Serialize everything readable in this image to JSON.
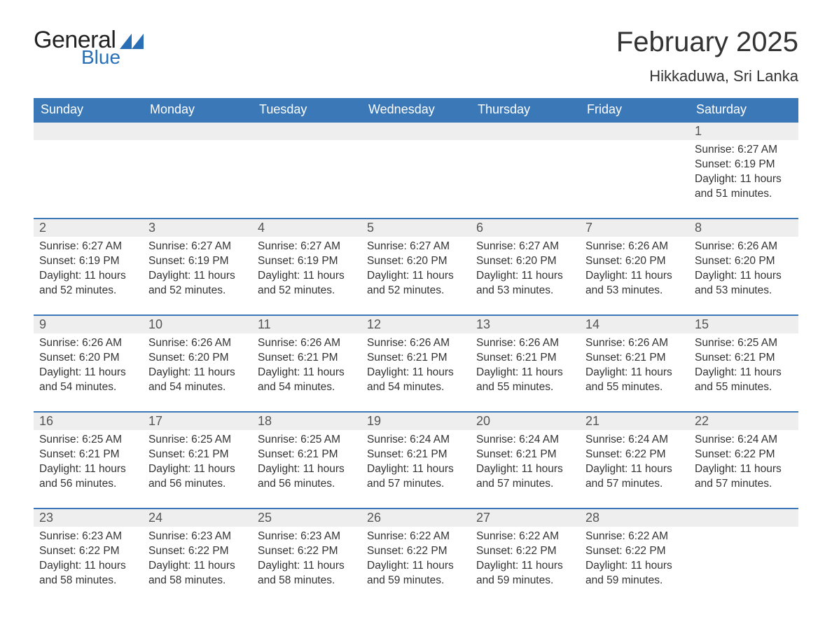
{
  "brand": {
    "word1": "General",
    "word2": "Blue",
    "accent_color": "#2a6fb5"
  },
  "title": "February 2025",
  "location": "Hikkaduwa, Sri Lanka",
  "colors": {
    "header_bg": "#3a78b8",
    "header_text": "#ffffff",
    "daynum_bg": "#eeeeee",
    "row_border": "#3a78b8",
    "text": "#333333",
    "page_bg": "#ffffff"
  },
  "fonts": {
    "family": "Segoe UI, Arial, sans-serif",
    "title_size_pt": 30,
    "location_size_pt": 17,
    "weekday_size_pt": 14,
    "daynum_size_pt": 14,
    "body_size_pt": 12
  },
  "weekdays": [
    "Sunday",
    "Monday",
    "Tuesday",
    "Wednesday",
    "Thursday",
    "Friday",
    "Saturday"
  ],
  "weeks": [
    [
      null,
      null,
      null,
      null,
      null,
      null,
      {
        "n": "1",
        "sunrise": "Sunrise: 6:27 AM",
        "sunset": "Sunset: 6:19 PM",
        "daylight": "Daylight: 11 hours and 51 minutes."
      }
    ],
    [
      {
        "n": "2",
        "sunrise": "Sunrise: 6:27 AM",
        "sunset": "Sunset: 6:19 PM",
        "daylight": "Daylight: 11 hours and 52 minutes."
      },
      {
        "n": "3",
        "sunrise": "Sunrise: 6:27 AM",
        "sunset": "Sunset: 6:19 PM",
        "daylight": "Daylight: 11 hours and 52 minutes."
      },
      {
        "n": "4",
        "sunrise": "Sunrise: 6:27 AM",
        "sunset": "Sunset: 6:19 PM",
        "daylight": "Daylight: 11 hours and 52 minutes."
      },
      {
        "n": "5",
        "sunrise": "Sunrise: 6:27 AM",
        "sunset": "Sunset: 6:20 PM",
        "daylight": "Daylight: 11 hours and 52 minutes."
      },
      {
        "n": "6",
        "sunrise": "Sunrise: 6:27 AM",
        "sunset": "Sunset: 6:20 PM",
        "daylight": "Daylight: 11 hours and 53 minutes."
      },
      {
        "n": "7",
        "sunrise": "Sunrise: 6:26 AM",
        "sunset": "Sunset: 6:20 PM",
        "daylight": "Daylight: 11 hours and 53 minutes."
      },
      {
        "n": "8",
        "sunrise": "Sunrise: 6:26 AM",
        "sunset": "Sunset: 6:20 PM",
        "daylight": "Daylight: 11 hours and 53 minutes."
      }
    ],
    [
      {
        "n": "9",
        "sunrise": "Sunrise: 6:26 AM",
        "sunset": "Sunset: 6:20 PM",
        "daylight": "Daylight: 11 hours and 54 minutes."
      },
      {
        "n": "10",
        "sunrise": "Sunrise: 6:26 AM",
        "sunset": "Sunset: 6:20 PM",
        "daylight": "Daylight: 11 hours and 54 minutes."
      },
      {
        "n": "11",
        "sunrise": "Sunrise: 6:26 AM",
        "sunset": "Sunset: 6:21 PM",
        "daylight": "Daylight: 11 hours and 54 minutes."
      },
      {
        "n": "12",
        "sunrise": "Sunrise: 6:26 AM",
        "sunset": "Sunset: 6:21 PM",
        "daylight": "Daylight: 11 hours and 54 minutes."
      },
      {
        "n": "13",
        "sunrise": "Sunrise: 6:26 AM",
        "sunset": "Sunset: 6:21 PM",
        "daylight": "Daylight: 11 hours and 55 minutes."
      },
      {
        "n": "14",
        "sunrise": "Sunrise: 6:26 AM",
        "sunset": "Sunset: 6:21 PM",
        "daylight": "Daylight: 11 hours and 55 minutes."
      },
      {
        "n": "15",
        "sunrise": "Sunrise: 6:25 AM",
        "sunset": "Sunset: 6:21 PM",
        "daylight": "Daylight: 11 hours and 55 minutes."
      }
    ],
    [
      {
        "n": "16",
        "sunrise": "Sunrise: 6:25 AM",
        "sunset": "Sunset: 6:21 PM",
        "daylight": "Daylight: 11 hours and 56 minutes."
      },
      {
        "n": "17",
        "sunrise": "Sunrise: 6:25 AM",
        "sunset": "Sunset: 6:21 PM",
        "daylight": "Daylight: 11 hours and 56 minutes."
      },
      {
        "n": "18",
        "sunrise": "Sunrise: 6:25 AM",
        "sunset": "Sunset: 6:21 PM",
        "daylight": "Daylight: 11 hours and 56 minutes."
      },
      {
        "n": "19",
        "sunrise": "Sunrise: 6:24 AM",
        "sunset": "Sunset: 6:21 PM",
        "daylight": "Daylight: 11 hours and 57 minutes."
      },
      {
        "n": "20",
        "sunrise": "Sunrise: 6:24 AM",
        "sunset": "Sunset: 6:21 PM",
        "daylight": "Daylight: 11 hours and 57 minutes."
      },
      {
        "n": "21",
        "sunrise": "Sunrise: 6:24 AM",
        "sunset": "Sunset: 6:22 PM",
        "daylight": "Daylight: 11 hours and 57 minutes."
      },
      {
        "n": "22",
        "sunrise": "Sunrise: 6:24 AM",
        "sunset": "Sunset: 6:22 PM",
        "daylight": "Daylight: 11 hours and 57 minutes."
      }
    ],
    [
      {
        "n": "23",
        "sunrise": "Sunrise: 6:23 AM",
        "sunset": "Sunset: 6:22 PM",
        "daylight": "Daylight: 11 hours and 58 minutes."
      },
      {
        "n": "24",
        "sunrise": "Sunrise: 6:23 AM",
        "sunset": "Sunset: 6:22 PM",
        "daylight": "Daylight: 11 hours and 58 minutes."
      },
      {
        "n": "25",
        "sunrise": "Sunrise: 6:23 AM",
        "sunset": "Sunset: 6:22 PM",
        "daylight": "Daylight: 11 hours and 58 minutes."
      },
      {
        "n": "26",
        "sunrise": "Sunrise: 6:22 AM",
        "sunset": "Sunset: 6:22 PM",
        "daylight": "Daylight: 11 hours and 59 minutes."
      },
      {
        "n": "27",
        "sunrise": "Sunrise: 6:22 AM",
        "sunset": "Sunset: 6:22 PM",
        "daylight": "Daylight: 11 hours and 59 minutes."
      },
      {
        "n": "28",
        "sunrise": "Sunrise: 6:22 AM",
        "sunset": "Sunset: 6:22 PM",
        "daylight": "Daylight: 11 hours and 59 minutes."
      },
      null
    ]
  ]
}
